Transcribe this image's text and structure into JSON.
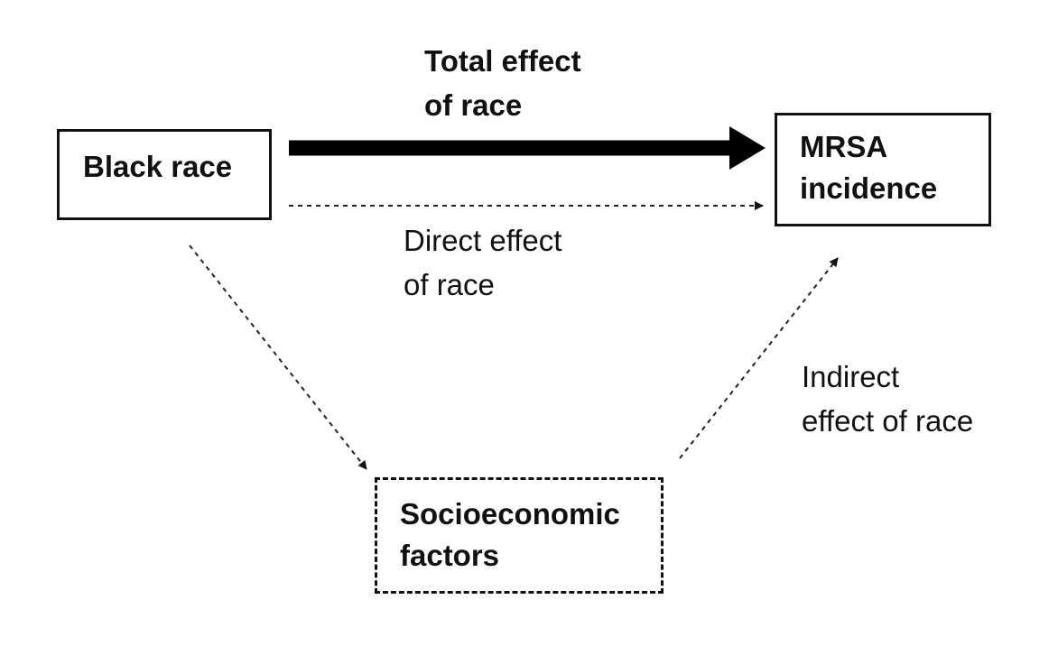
{
  "nodes": {
    "black_race": {
      "line1": "Black race"
    },
    "mrsa": {
      "line1": "MRSA",
      "line2": "incidence"
    },
    "socioeconomic": {
      "line1": "Socioeconomic",
      "line2": "factors"
    }
  },
  "edges": {
    "total": {
      "line1": "Total effect",
      "line2": "of race"
    },
    "direct": {
      "line1": "Direct effect",
      "line2": "of race"
    },
    "indirect": {
      "line1": "Indirect",
      "line2": "effect of race"
    }
  }
}
